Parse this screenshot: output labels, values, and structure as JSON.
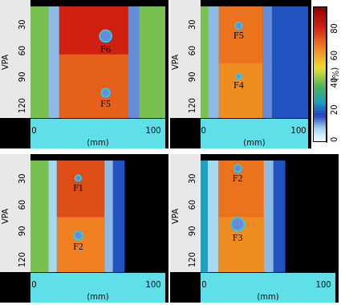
{
  "chart_data": [
    {
      "type": "heatmap",
      "x_label": "(mm)",
      "y_label": "VPA",
      "xlim": [
        -3,
        110
      ],
      "ylim": [
        15,
        143
      ],
      "xticks": [
        0,
        100
      ],
      "yticks": [
        30,
        60,
        90,
        120
      ],
      "grid": false,
      "cells": [
        {
          "x": [
            -3,
            12
          ],
          "y": [
            15,
            143
          ],
          "value": 45
        },
        {
          "x": [
            12,
            21
          ],
          "y": [
            15,
            143
          ],
          "value": 12
        },
        {
          "x": [
            21,
            79
          ],
          "y": [
            15,
            70
          ],
          "value": 85
        },
        {
          "x": [
            21,
            79
          ],
          "y": [
            70,
            143
          ],
          "value": 75
        },
        {
          "x": [
            79,
            88
          ],
          "y": [
            15,
            143
          ],
          "value": 15
        },
        {
          "x": [
            88,
            110
          ],
          "y": [
            15,
            143
          ],
          "value": 45
        }
      ],
      "defects": [
        {
          "label": "F6",
          "x": 60,
          "y": 49,
          "diameter": 10,
          "value": 15
        },
        {
          "label": "F5",
          "x": 60,
          "y": 114,
          "diameter": 7,
          "value": 15
        }
      ]
    },
    {
      "type": "heatmap",
      "x_label": "(mm)",
      "y_label": "VPA",
      "xlim": [
        -3,
        110
      ],
      "ylim": [
        15,
        143
      ],
      "xticks": [
        0,
        100
      ],
      "yticks": [
        30,
        60,
        90,
        120
      ],
      "grid": false,
      "cells": [
        {
          "x": [
            -3,
            5
          ],
          "y": [
            15,
            143
          ],
          "value": 45
        },
        {
          "x": [
            5,
            16
          ],
          "y": [
            15,
            143
          ],
          "value": 12
        },
        {
          "x": [
            16,
            62
          ],
          "y": [
            15,
            80
          ],
          "value": 72
        },
        {
          "x": [
            16,
            62
          ],
          "y": [
            80,
            143
          ],
          "value": 68
        },
        {
          "x": [
            62,
            72
          ],
          "y": [
            15,
            143
          ],
          "value": 15
        },
        {
          "x": [
            72,
            110
          ],
          "y": [
            15,
            143
          ],
          "value": 22
        }
      ],
      "defects": [
        {
          "label": "F5",
          "x": 37,
          "y": 37,
          "diameter": 7,
          "value": 15
        },
        {
          "label": "F4",
          "x": 37,
          "y": 95,
          "diameter": 5,
          "value": 15
        }
      ],
      "colorbar": {
        "range": [
          0,
          100
        ],
        "ticks": [
          0,
          20,
          40,
          60,
          80
        ],
        "label": "(%)"
      }
    },
    {
      "type": "heatmap",
      "x_label": "(mm)",
      "y_label": "VPA",
      "xlim": [
        -3,
        110
      ],
      "ylim": [
        15,
        143
      ],
      "xticks": [
        0,
        100
      ],
      "yticks": [
        30,
        60,
        90,
        120
      ],
      "grid": false,
      "cells": [
        {
          "x": [
            -3,
            12
          ],
          "y": [
            15,
            143
          ],
          "value": 45
        },
        {
          "x": [
            12,
            19
          ],
          "y": [
            15,
            143
          ],
          "value": 10
        },
        {
          "x": [
            19,
            59
          ],
          "y": [
            15,
            80
          ],
          "value": 78
        },
        {
          "x": [
            19,
            59
          ],
          "y": [
            80,
            143
          ],
          "value": 70
        },
        {
          "x": [
            59,
            66
          ],
          "y": [
            15,
            143
          ],
          "value": 12
        },
        {
          "x": [
            66,
            76
          ],
          "y": [
            15,
            143
          ],
          "value": 22
        },
        {
          "x": [
            76,
            110
          ],
          "y": [
            15,
            143
          ],
          "value": null
        }
      ],
      "defects": [
        {
          "label": "F1",
          "x": 37,
          "y": 35,
          "diameter": 5,
          "value": 15
        },
        {
          "label": "F2",
          "x": 37,
          "y": 101,
          "diameter": 7,
          "value": 15
        }
      ]
    },
    {
      "type": "heatmap",
      "x_label": "(mm)",
      "y_label": "VPA",
      "xlim": [
        -3,
        110
      ],
      "ylim": [
        15,
        143
      ],
      "xticks": [
        0,
        100
      ],
      "yticks": [
        30,
        60,
        90,
        120
      ],
      "grid": false,
      "cells": [
        {
          "x": [
            -3,
            3
          ],
          "y": [
            15,
            143
          ],
          "value": 30
        },
        {
          "x": [
            3,
            12
          ],
          "y": [
            15,
            143
          ],
          "value": 10
        },
        {
          "x": [
            12,
            50
          ],
          "y": [
            15,
            80
          ],
          "value": 72
        },
        {
          "x": [
            12,
            50
          ],
          "y": [
            80,
            143
          ],
          "value": 68
        },
        {
          "x": [
            50,
            58
          ],
          "y": [
            15,
            143
          ],
          "value": 12
        },
        {
          "x": [
            58,
            68
          ],
          "y": [
            15,
            143
          ],
          "value": 22
        },
        {
          "x": [
            68,
            110
          ],
          "y": [
            15,
            143
          ],
          "value": null
        }
      ],
      "defects": [
        {
          "label": "F2",
          "x": 28,
          "y": 24,
          "diameter": 6,
          "value": 15
        },
        {
          "label": "F3",
          "x": 28,
          "y": 88,
          "diameter": 11,
          "value": 15
        }
      ]
    }
  ]
}
